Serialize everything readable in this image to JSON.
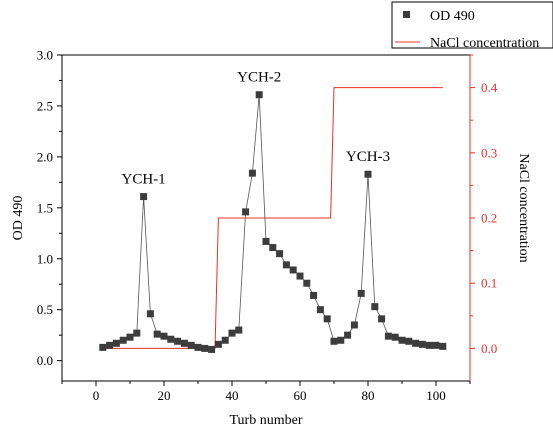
{
  "chart_data": {
    "type": "line",
    "xlabel": "Turb number",
    "ylabel": "OD 490",
    "y2label": "NaCl concentration",
    "xlim": [
      -10,
      110
    ],
    "ylim": [
      -0.2,
      3.0
    ],
    "y2lim": [
      -0.05,
      0.45
    ],
    "xticks": [
      0,
      20,
      40,
      60,
      80,
      100
    ],
    "yticks": [
      0.0,
      0.5,
      1.0,
      1.5,
      2.0,
      2.5,
      3.0
    ],
    "yticks_labels": [
      "0.0",
      "0.5",
      "1.0",
      "1.5",
      "2.0",
      "2.5",
      "3.0"
    ],
    "y2ticks": [
      0.0,
      0.1,
      0.2,
      0.3,
      0.4
    ],
    "y2ticks_labels": [
      "0.0",
      "0.1",
      "0.2",
      "0.3",
      "0.4"
    ],
    "colors": {
      "od": "#3c3c3c",
      "nacl": "#e8312a",
      "axis": "#000000"
    },
    "series": [
      {
        "name": "OD 490",
        "axis": "left",
        "marker": "square",
        "x": [
          2,
          4,
          6,
          8,
          10,
          12,
          14,
          16,
          18,
          20,
          22,
          24,
          26,
          28,
          30,
          32,
          34,
          36,
          38,
          40,
          42,
          44,
          46,
          48,
          50,
          52,
          54,
          56,
          58,
          60,
          62,
          64,
          66,
          68,
          70,
          72,
          74,
          76,
          78,
          80,
          82,
          84,
          86,
          88,
          90,
          92,
          94,
          96,
          98,
          100,
          102
        ],
        "values": [
          0.13,
          0.15,
          0.17,
          0.2,
          0.23,
          0.27,
          1.61,
          0.46,
          0.26,
          0.24,
          0.21,
          0.19,
          0.17,
          0.15,
          0.13,
          0.12,
          0.11,
          0.16,
          0.2,
          0.27,
          0.3,
          1.46,
          1.84,
          2.61,
          1.17,
          1.11,
          1.05,
          0.94,
          0.89,
          0.83,
          0.76,
          0.64,
          0.5,
          0.41,
          0.19,
          0.2,
          0.25,
          0.35,
          0.66,
          1.83,
          0.53,
          0.41,
          0.24,
          0.23,
          0.2,
          0.19,
          0.17,
          0.16,
          0.15,
          0.15,
          0.14
        ]
      },
      {
        "name": "NaCl concentration",
        "axis": "right",
        "x": [
          2,
          35,
          36,
          69,
          70,
          102
        ],
        "values": [
          0.0,
          0.0,
          0.2,
          0.2,
          0.4,
          0.4
        ]
      }
    ],
    "annotations": [
      {
        "text": "YCH-1",
        "x": 14,
        "y": 1.61
      },
      {
        "text": "YCH-2",
        "x": 48,
        "y": 2.61
      },
      {
        "text": "YCH-3",
        "x": 80,
        "y": 1.83
      }
    ],
    "legend": {
      "position": "top-right",
      "entries": [
        "OD 490",
        "NaCl concentration"
      ]
    },
    "grid": false
  }
}
